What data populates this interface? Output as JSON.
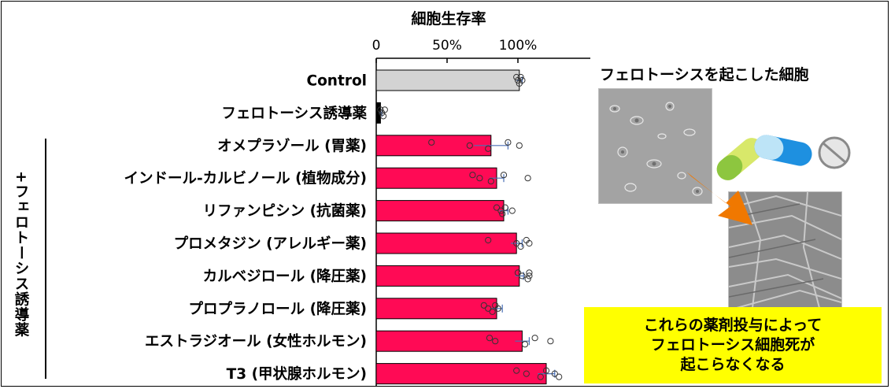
{
  "chart_data": {
    "type": "bar",
    "orientation": "horizontal",
    "title": "細胞生存率",
    "x_tick_labels": [
      "0",
      "50%",
      "100%"
    ],
    "xlim": [
      0,
      150
    ],
    "categories": [
      "Control",
      "フェロトーシス誘導薬",
      "オメプラゾール (胃薬)",
      "インドール-カルビノール (植物成分)",
      "リファンピシン (抗菌薬)",
      "プロメタジン (アレルギー薬)",
      "カルベジロール (降圧薬)",
      "プロプラノロール (降圧薬)",
      "エストラジオール (女性ホルモン)",
      "T3 (甲状腺ホルモン)"
    ],
    "values": [
      101,
      3,
      81,
      85,
      90,
      99,
      101,
      85,
      103,
      120
    ],
    "errors": [
      2,
      1,
      12,
      5,
      3,
      4,
      3,
      4,
      5,
      6
    ],
    "points": [
      [
        99,
        100,
        101,
        102,
        103
      ],
      [
        3,
        4,
        5,
        6
      ],
      [
        39,
        66,
        79,
        93,
        101
      ],
      [
        68,
        73,
        81,
        90,
        107
      ],
      [
        85,
        88,
        89,
        91,
        96
      ],
      [
        79,
        99,
        102,
        106,
        108
      ],
      [
        100,
        103,
        107,
        108,
        108
      ],
      [
        76,
        79,
        82,
        84,
        86
      ],
      [
        80,
        84,
        105,
        112,
        123
      ],
      [
        99,
        106,
        116,
        120,
        126,
        129
      ]
    ],
    "bar_colors": [
      "#d3d3d3",
      "#000000",
      "#ff0a55",
      "#ff0a55",
      "#ff0a55",
      "#ff0a55",
      "#ff0a55",
      "#ff0a55",
      "#ff0a55",
      "#ff0a55"
    ],
    "group_label": "+フェロトーシス誘導薬",
    "grid": false
  },
  "figure": {
    "cells_caption": "フェロトーシスを起こした細胞",
    "effect_lines": [
      "これらの薬剤投与によって",
      "フェロトーシス細胞死が",
      "起こらなくなる"
    ],
    "arrow_color": "#f07800",
    "pill_colors": [
      "#8dc63f",
      "#1e90e0",
      "#d9d9d9"
    ]
  }
}
